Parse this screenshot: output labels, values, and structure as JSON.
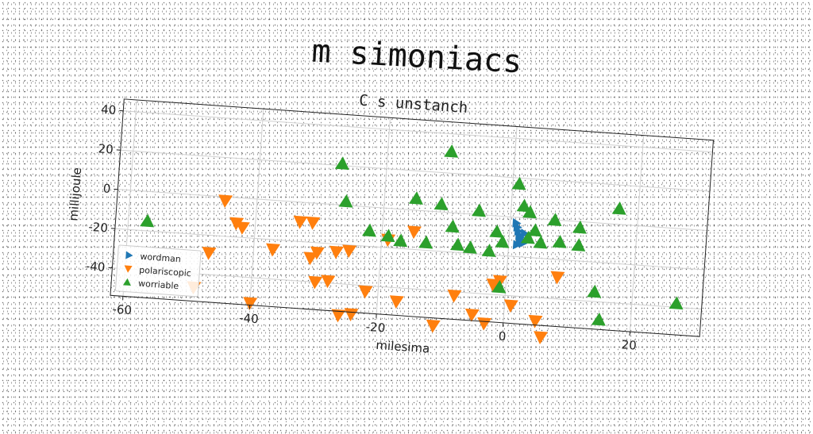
{
  "chart_data": {
    "type": "scatter",
    "title": "m simoniacs",
    "subtitle": "C s unstanch",
    "xlabel": "milesima",
    "ylabel": "millijoule",
    "xlim": [
      -62,
      31
    ],
    "ylim": [
      -54,
      46
    ],
    "xticks": [
      -60,
      -40,
      -20,
      0,
      20
    ],
    "yticks": [
      40,
      20,
      0,
      -20,
      -40
    ],
    "grid": true,
    "legend_position": "lower-left",
    "series": [
      {
        "name": "wordman",
        "marker": "triangle-right",
        "color": "#1f77b4",
        "points": [
          [
            1.0,
            -3
          ],
          [
            1.2,
            -5
          ],
          [
            1.4,
            -7
          ],
          [
            1.6,
            -9
          ],
          [
            1.8,
            -10
          ],
          [
            2.0,
            -12
          ],
          [
            2.2,
            -13
          ],
          [
            1.3,
            -14
          ],
          [
            1.7,
            -11
          ],
          [
            2.4,
            -8
          ]
        ]
      },
      {
        "name": "polariscopic",
        "marker": "triangle-down",
        "color": "#ff7f0e",
        "points": [
          [
            -45,
            -2
          ],
          [
            -43,
            -13
          ],
          [
            -42,
            -15
          ],
          [
            -47,
            -29
          ],
          [
            -37,
            -25
          ],
          [
            -33,
            -10
          ],
          [
            -31,
            -10
          ],
          [
            -30,
            -25
          ],
          [
            -31,
            -28
          ],
          [
            -30,
            -40
          ],
          [
            -28,
            -39
          ],
          [
            -27,
            -24
          ],
          [
            -25,
            -23
          ],
          [
            -22,
            -43
          ],
          [
            -19,
            -16
          ],
          [
            -17,
            -47
          ],
          [
            -15,
            -11
          ],
          [
            -8,
            -42
          ],
          [
            -5,
            -51
          ],
          [
            -3,
            -55
          ],
          [
            -2,
            -35
          ],
          [
            -1,
            -33
          ],
          [
            1,
            -45
          ],
          [
            5,
            -52
          ],
          [
            6,
            -60
          ],
          [
            8,
            -29
          ],
          [
            -11,
            -58
          ],
          [
            -24,
            -55
          ],
          [
            -26,
            -56
          ],
          [
            -40,
            -53
          ],
          [
            -49,
            -47
          ]
        ]
      },
      {
        "name": "worriable",
        "marker": "triangle-up",
        "color": "#2ca02c",
        "points": [
          [
            -57,
            -15
          ],
          [
            -27,
            21
          ],
          [
            -26,
            2
          ],
          [
            -19,
            -14
          ],
          [
            -17,
            -16
          ],
          [
            -15,
            6
          ],
          [
            -13,
            -16
          ],
          [
            -11,
            4
          ],
          [
            -9,
            -7
          ],
          [
            -8,
            -16
          ],
          [
            -6,
            -17
          ],
          [
            -5,
            2
          ],
          [
            -3,
            -18
          ],
          [
            -2,
            -8
          ],
          [
            -1,
            -13
          ],
          [
            1,
            17
          ],
          [
            2,
            6
          ],
          [
            3,
            3
          ],
          [
            4,
            -6
          ],
          [
            5,
            -12
          ],
          [
            7,
            0
          ],
          [
            8,
            -11
          ],
          [
            11,
            -3
          ],
          [
            11,
            -12
          ],
          [
            14,
            -35
          ],
          [
            15,
            -49
          ],
          [
            17,
            8
          ],
          [
            27,
            -38
          ],
          [
            -10,
            31
          ],
          [
            -1,
            -36
          ],
          [
            3,
            -10
          ],
          [
            -22,
            -12
          ]
        ]
      }
    ]
  }
}
